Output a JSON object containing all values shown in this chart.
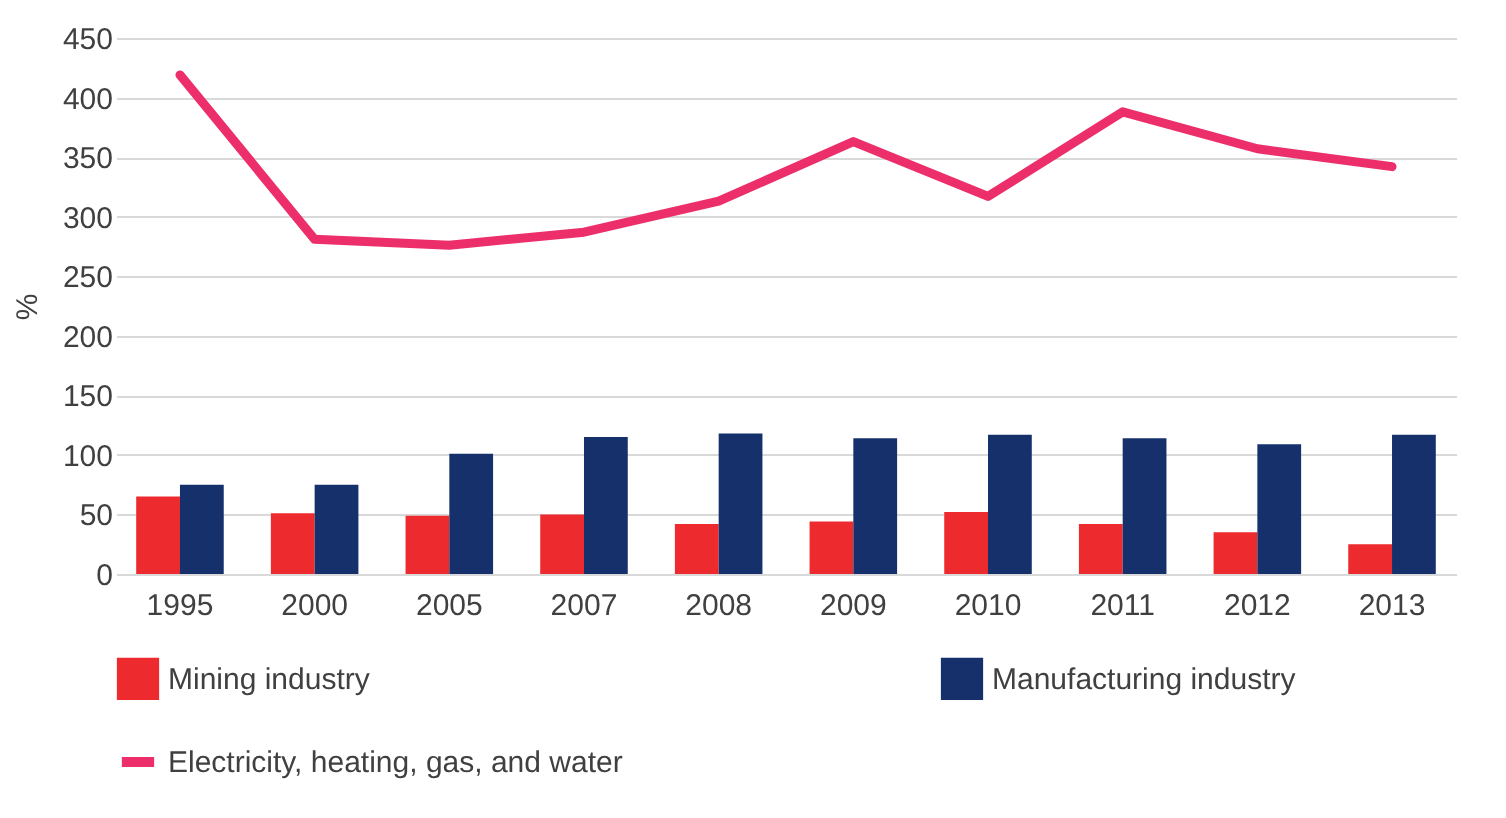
{
  "chart_data": {
    "type": "bar",
    "ylabel": "%",
    "categories": [
      "1995",
      "2000",
      "2005",
      "2007",
      "2008",
      "2009",
      "2010",
      "2011",
      "2012",
      "2013"
    ],
    "series": [
      {
        "name": "Mining industry",
        "color": "#ed2a2e",
        "values": [
          65,
          51,
          49,
          50,
          42,
          44,
          52,
          42,
          35,
          25
        ]
      },
      {
        "name": "Manufacturing industry",
        "color": "#16306b",
        "values": [
          75,
          75,
          101,
          115,
          118,
          114,
          117,
          114,
          109,
          117
        ]
      },
      {
        "name": "Electricity, heating, gas, and water",
        "type": "line",
        "color": "#ec2e6a",
        "values": [
          419,
          281,
          276,
          287,
          313,
          363,
          317,
          388,
          357,
          342
        ]
      }
    ],
    "ylim": [
      0,
      450
    ],
    "yticks": [
      0,
      50,
      100,
      150,
      200,
      250,
      300,
      350,
      400,
      450
    ],
    "grid": "y",
    "legend": "bottom",
    "marker": "none",
    "line_style": "solid"
  }
}
